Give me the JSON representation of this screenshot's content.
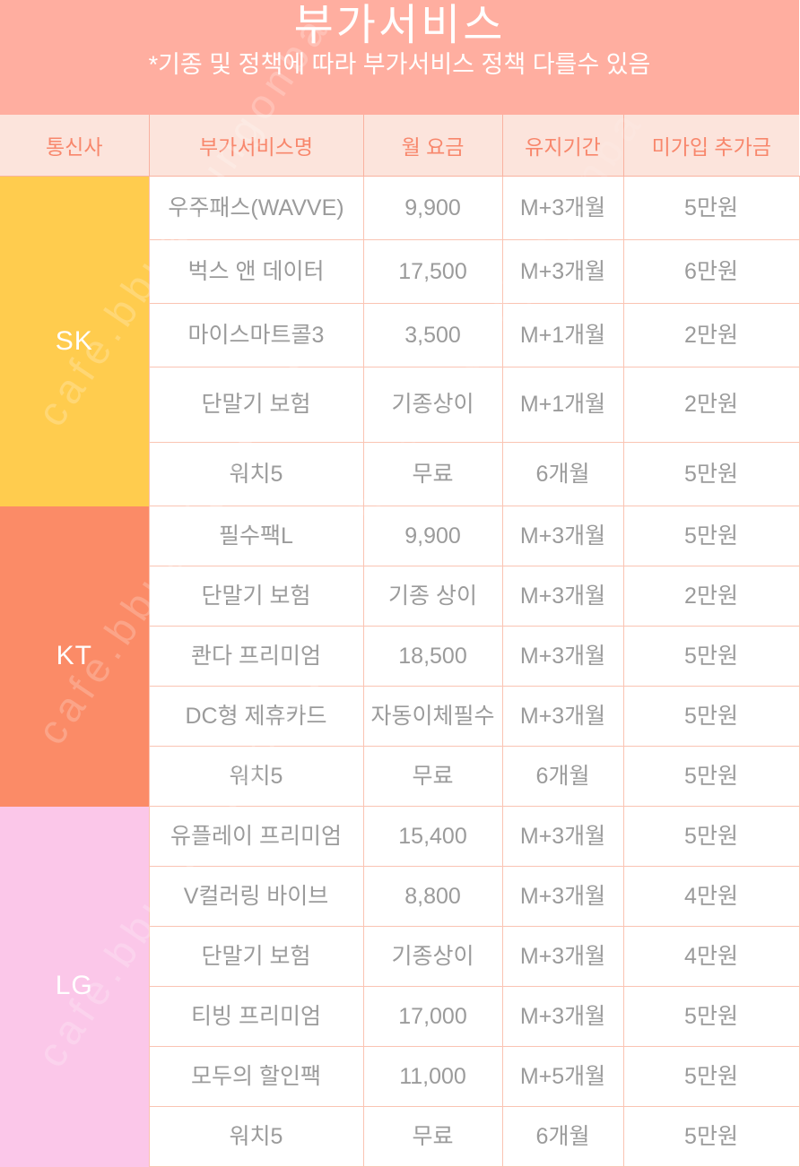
{
  "title": {
    "heading": "부가서비스",
    "note": "*기종 및 정책에 따라 부가서비스 정책 다를수 있음"
  },
  "table": {
    "columns": [
      "통신사",
      "부가서비스명",
      "월 요금",
      "유지기간",
      "미가입 추가금"
    ],
    "groups": [
      {
        "carrier": "SK",
        "color": "#ffcc4e",
        "rows": [
          {
            "service": "우주패스(WAVVE)",
            "fee": "9,900",
            "period": "M+3개월",
            "extra": "5만원"
          },
          {
            "service": "벅스 앤 데이터",
            "fee": "17,500",
            "period": "M+3개월",
            "extra": "6만원"
          },
          {
            "service": "마이스마트콜3",
            "fee": "3,500",
            "period": "M+1개월",
            "extra": "2만원"
          },
          {
            "service": "단말기 보험",
            "fee": "기종상이",
            "period": "M+1개월",
            "extra": "2만원"
          },
          {
            "service": "워치5",
            "fee": "무료",
            "period": "6개월",
            "extra": "5만원"
          }
        ]
      },
      {
        "carrier": "KT",
        "color": "#fb8b67",
        "rows": [
          {
            "service": "필수팩L",
            "fee": "9,900",
            "period": "M+3개월",
            "extra": "5만원"
          },
          {
            "service": "단말기 보험",
            "fee": "기종 상이",
            "period": "M+3개월",
            "extra": "2만원"
          },
          {
            "service": "콴다 프리미엄",
            "fee": "18,500",
            "period": "M+3개월",
            "extra": "5만원"
          },
          {
            "service": "DC형 제휴카드",
            "fee": "자동이체필수",
            "period": "M+3개월",
            "extra": "5만원"
          },
          {
            "service": "워치5",
            "fee": "무료",
            "period": "6개월",
            "extra": "5만원"
          }
        ]
      },
      {
        "carrier": "LG",
        "color": "#fbc7e9",
        "rows": [
          {
            "service": "유플레이 프리미엄",
            "fee": "15,400",
            "period": "M+3개월",
            "extra": "5만원"
          },
          {
            "service": "V컬러링 바이브",
            "fee": "8,800",
            "period": "M+3개월",
            "extra": "4만원"
          },
          {
            "service": "단말기 보험",
            "fee": "기종상이",
            "period": "M+3개월",
            "extra": "4만원"
          },
          {
            "service": "티빙 프리미엄",
            "fee": "17,000",
            "period": "M+3개월",
            "extra": "5만원"
          },
          {
            "service": "모두의 할인팩",
            "fee": "11,000",
            "period": "M+5개월",
            "extra": "5만원"
          },
          {
            "service": "워치5",
            "fee": "무료",
            "period": "6개월",
            "extra": "5만원"
          }
        ]
      }
    ]
  },
  "watermark": {
    "text": "cafe.bbuanjungonba"
  },
  "colors": {
    "banner_bg": "#ffaea0",
    "head_row_bg": "#fce4dc",
    "head_row_text": "#f8876c",
    "cell_text": "#9b9b9b",
    "grid_border": "#fac4b3",
    "sk_bg": "#ffcc4e",
    "kt_bg": "#fb8b67",
    "lg_bg": "#fbc7e9",
    "banner_text": "#ffffff"
  },
  "chart_data": {
    "type": "table",
    "title": "부가서비스",
    "subtitle": "*기종 및 정책에 따라 부가서비스 정책 다를수 있음",
    "columns": [
      "통신사",
      "부가서비스명",
      "월 요금",
      "유지기간",
      "미가입 추가금"
    ],
    "rows": [
      [
        "SK",
        "우주패스(WAVVE)",
        "9,900",
        "M+3개월",
        "5만원"
      ],
      [
        "SK",
        "벅스 앤 데이터",
        "17,500",
        "M+3개월",
        "6만원"
      ],
      [
        "SK",
        "마이스마트콜3",
        "3,500",
        "M+1개월",
        "2만원"
      ],
      [
        "SK",
        "단말기 보험",
        "기종상이",
        "M+1개월",
        "2만원"
      ],
      [
        "SK",
        "워치5",
        "무료",
        "6개월",
        "5만원"
      ],
      [
        "KT",
        "필수팩L",
        "9,900",
        "M+3개월",
        "5만원"
      ],
      [
        "KT",
        "단말기 보험",
        "기종 상이",
        "M+3개월",
        "2만원"
      ],
      [
        "KT",
        "콴다 프리미엄",
        "18,500",
        "M+3개월",
        "5만원"
      ],
      [
        "KT",
        "DC형 제휴카드",
        "자동이체필수",
        "M+3개월",
        "5만원"
      ],
      [
        "KT",
        "워치5",
        "무료",
        "6개월",
        "5만원"
      ],
      [
        "LG",
        "유플레이 프리미엄",
        "15,400",
        "M+3개월",
        "5만원"
      ],
      [
        "LG",
        "V컬러링 바이브",
        "8,800",
        "M+3개월",
        "4만원"
      ],
      [
        "LG",
        "단말기 보험",
        "기종상이",
        "M+3개월",
        "4만원"
      ],
      [
        "LG",
        "티빙 프리미엄",
        "17,000",
        "M+3개월",
        "5만원"
      ],
      [
        "LG",
        "모두의 할인팩",
        "11,000",
        "M+5개월",
        "5만원"
      ],
      [
        "LG",
        "워치5",
        "무료",
        "6개월",
        "5만원"
      ]
    ]
  }
}
